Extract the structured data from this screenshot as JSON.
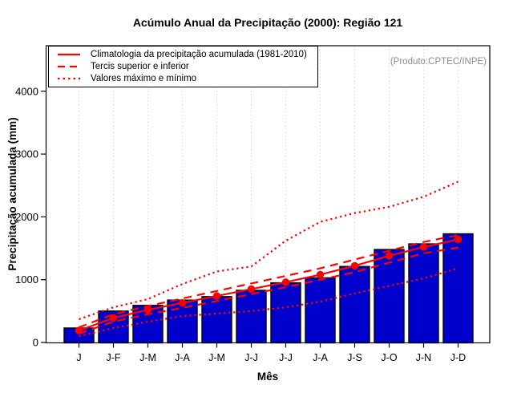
{
  "title": "Acúmulo Anual da Precipitação (2000): Região 121",
  "product_label": "(Produto:CPTEC/INPE)",
  "legend": {
    "items": [
      {
        "label": "Climatologia da precipitação acumulada (1981-2010)",
        "style": "solid"
      },
      {
        "label": "Tercis superior e inferior",
        "style": "dashed"
      },
      {
        "label": "Valores máximo e mínimo",
        "style": "dotted"
      }
    ]
  },
  "chart_data": {
    "type": "bar",
    "title": "Acúmulo Anual da Precipitação (2000): Região 121",
    "xlabel": "Mês",
    "ylabel": "Precipitação acumulada (mm)",
    "categories": [
      "J",
      "J-F",
      "J-M",
      "J-A",
      "J-M",
      "J-J",
      "J-J",
      "J-A",
      "J-S",
      "J-O",
      "J-N",
      "J-D"
    ],
    "yticks": [
      0,
      1000,
      2000,
      3000,
      4000
    ],
    "ylim": [
      0,
      4300
    ],
    "grid": "vertical-dotted-light-gray",
    "legend_position": "top-left",
    "bar_color": "#0000CC",
    "line_color": "#FF0000",
    "bars": {
      "id": "acumulado_2000",
      "values": [
        230,
        500,
        590,
        675,
        730,
        830,
        950,
        1030,
        1210,
        1480,
        1570,
        1730
      ]
    },
    "series": [
      {
        "id": "climatologia_1981_2010",
        "style": "solid",
        "markers": true,
        "values": [
          190,
          390,
          520,
          630,
          740,
          850,
          960,
          1080,
          1220,
          1380,
          1520,
          1640
        ]
      },
      {
        "id": "tercil_superior",
        "style": "dashed",
        "markers": false,
        "values": [
          240,
          450,
          580,
          700,
          820,
          940,
          1060,
          1180,
          1320,
          1460,
          1600,
          1710
        ]
      },
      {
        "id": "tercil_inferior",
        "style": "dashed",
        "markers": false,
        "values": [
          140,
          330,
          450,
          550,
          660,
          770,
          880,
          1000,
          1120,
          1270,
          1420,
          1510
        ]
      },
      {
        "id": "valor_maximo",
        "style": "dotted",
        "markers": false,
        "values": [
          370,
          560,
          690,
          930,
          1130,
          1210,
          1620,
          1920,
          2060,
          2160,
          2320,
          2560
        ]
      },
      {
        "id": "valor_minimo",
        "style": "dotted",
        "markers": false,
        "values": [
          100,
          230,
          330,
          420,
          460,
          500,
          560,
          650,
          780,
          900,
          1020,
          1180
        ]
      }
    ]
  }
}
